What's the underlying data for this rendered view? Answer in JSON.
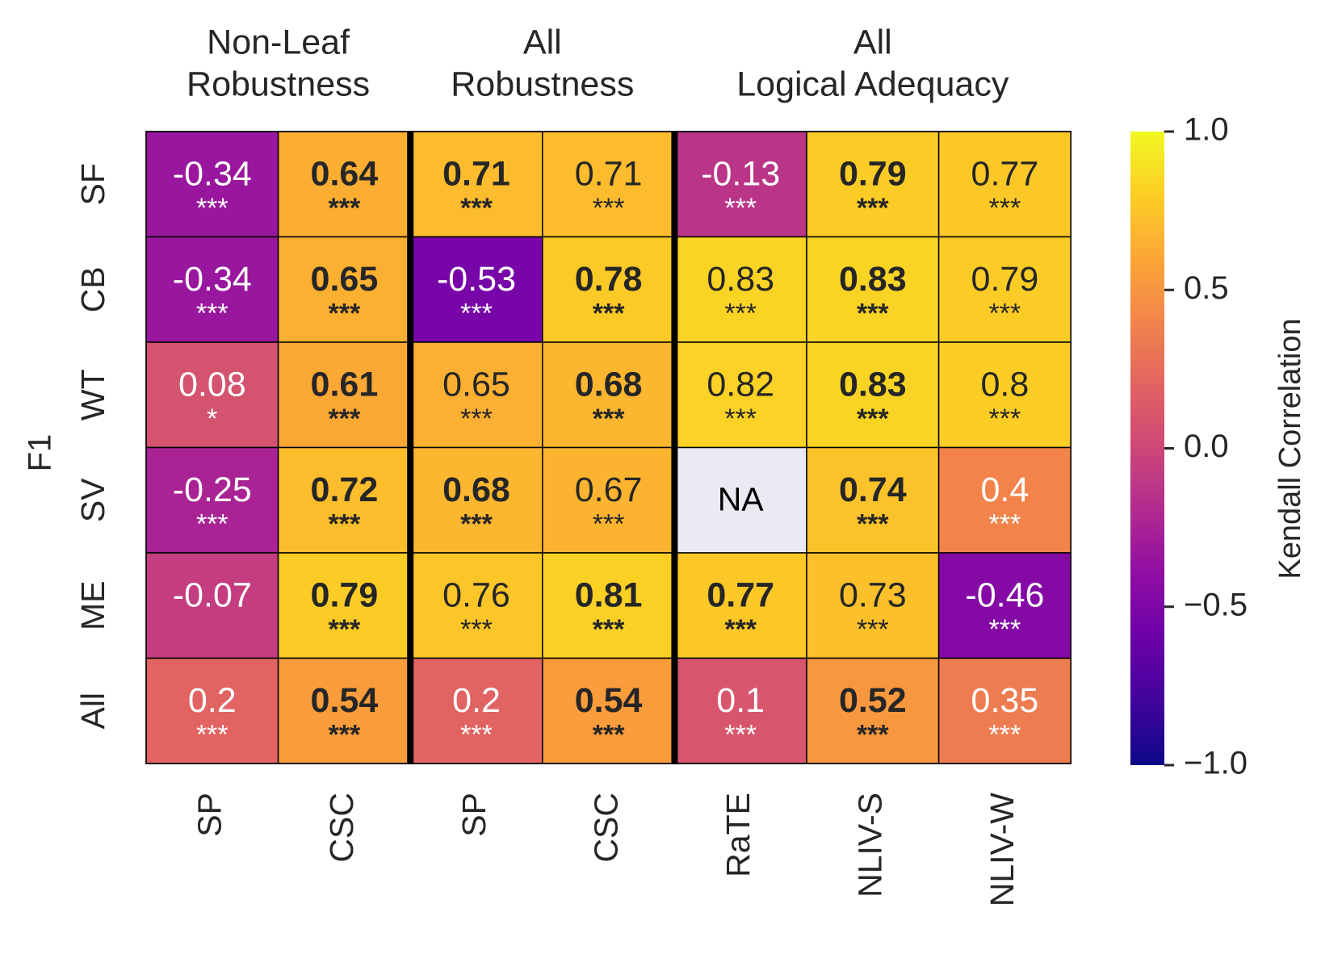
{
  "chart_data": {
    "type": "heatmap",
    "title": "",
    "ylabel": "F1",
    "group_headers": [
      {
        "line1": "Non-Leaf",
        "line2": "Robustness",
        "columns": [
          0,
          1
        ]
      },
      {
        "line1": "All",
        "line2": "Robustness",
        "columns": [
          2,
          3
        ]
      },
      {
        "line1": "All",
        "line2": "Logical Adequacy",
        "columns": [
          4,
          5,
          6
        ]
      }
    ],
    "columns": [
      "SP",
      "CSC",
      "SP",
      "CSC",
      "RaTE",
      "NLIV-S",
      "NLIV-W"
    ],
    "rows": [
      "SF",
      "CB",
      "WT",
      "SV",
      "ME",
      "All"
    ],
    "values": [
      [
        -0.34,
        0.64,
        0.71,
        0.71,
        -0.13,
        0.79,
        0.77
      ],
      [
        -0.34,
        0.65,
        -0.53,
        0.78,
        0.83,
        0.83,
        0.79
      ],
      [
        0.08,
        0.61,
        0.65,
        0.68,
        0.82,
        0.83,
        0.8
      ],
      [
        -0.25,
        0.72,
        0.68,
        0.67,
        null,
        0.74,
        0.4
      ],
      [
        -0.07,
        0.79,
        0.76,
        0.81,
        0.77,
        0.73,
        -0.46
      ],
      [
        0.2,
        0.54,
        0.2,
        0.54,
        0.1,
        0.52,
        0.35
      ]
    ],
    "value_labels": [
      [
        "-0.34",
        "0.64",
        "0.71",
        "0.71",
        "-0.13",
        "0.79",
        "0.77"
      ],
      [
        "-0.34",
        "0.65",
        "-0.53",
        "0.78",
        "0.83",
        "0.83",
        "0.79"
      ],
      [
        "0.08",
        "0.61",
        "0.65",
        "0.68",
        "0.82",
        "0.83",
        "0.8"
      ],
      [
        "-0.25",
        "0.72",
        "0.68",
        "0.67",
        "NA",
        "0.74",
        "0.4"
      ],
      [
        "-0.07",
        "0.79",
        "0.76",
        "0.81",
        "0.77",
        "0.73",
        "-0.46"
      ],
      [
        "0.2",
        "0.54",
        "0.2",
        "0.54",
        "0.1",
        "0.52",
        "0.35"
      ]
    ],
    "significance": [
      [
        "***",
        "***",
        "***",
        "***",
        "***",
        "***",
        "***"
      ],
      [
        "***",
        "***",
        "***",
        "***",
        "***",
        "***",
        "***"
      ],
      [
        "*",
        "***",
        "***",
        "***",
        "***",
        "***",
        "***"
      ],
      [
        "***",
        "***",
        "***",
        "***",
        "",
        "***",
        "***"
      ],
      [
        "",
        "***",
        "***",
        "***",
        "***",
        "***",
        "***"
      ],
      [
        "***",
        "***",
        "***",
        "***",
        "***",
        "***",
        "***"
      ]
    ],
    "bold": [
      [
        false,
        true,
        true,
        false,
        false,
        true,
        false
      ],
      [
        false,
        true,
        false,
        true,
        false,
        true,
        false
      ],
      [
        false,
        true,
        false,
        true,
        false,
        true,
        false
      ],
      [
        false,
        true,
        true,
        false,
        false,
        true,
        false
      ],
      [
        false,
        true,
        false,
        true,
        true,
        false,
        false
      ],
      [
        false,
        true,
        false,
        true,
        false,
        true,
        false
      ]
    ],
    "group_separators_after_columns": [
      1,
      3
    ],
    "na_label": "NA",
    "na_color": "#eaeaf2",
    "colormap": "plasma",
    "vmin": -1.0,
    "vmax": 1.0,
    "colorbar": {
      "label": "Kendall Correlation",
      "ticks": [
        1.0,
        0.5,
        0.0,
        -0.5,
        -1.0
      ],
      "tick_labels": [
        "1.0",
        "0.5",
        "0.0",
        "−0.5",
        "−1.0"
      ]
    }
  }
}
